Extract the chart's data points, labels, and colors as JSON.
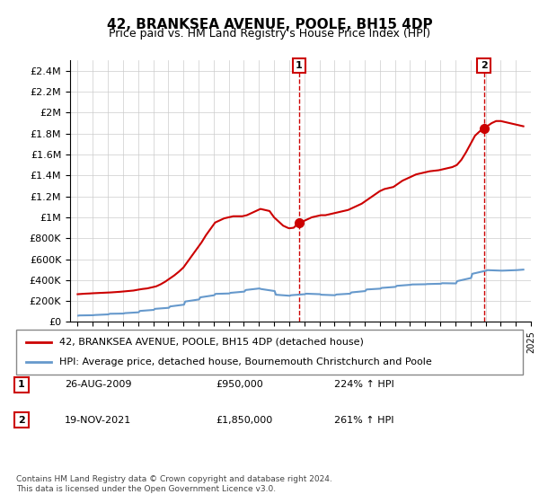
{
  "title": "42, BRANKSEA AVENUE, POOLE, BH15 4DP",
  "subtitle": "Price paid vs. HM Land Registry's House Price Index (HPI)",
  "hpi_color": "#6699cc",
  "price_color": "#cc0000",
  "marker_color": "#cc0000",
  "vline_color": "#cc0000",
  "background_color": "#ffffff",
  "grid_color": "#cccccc",
  "ylim": [
    0,
    2500000
  ],
  "yticks": [
    0,
    200000,
    400000,
    600000,
    800000,
    1000000,
    1200000,
    1400000,
    1600000,
    1800000,
    2000000,
    2200000,
    2400000
  ],
  "ytick_labels": [
    "£0",
    "£200K",
    "£400K",
    "£600K",
    "£800K",
    "£1M",
    "£1.2M",
    "£1.4M",
    "£1.6M",
    "£1.8M",
    "£2M",
    "£2.2M",
    "£2.4M"
  ],
  "sale1_date": 2009.65,
  "sale1_price": 950000,
  "sale1_label": "1",
  "sale2_date": 2021.89,
  "sale2_price": 1850000,
  "sale2_label": "2",
  "legend_label_price": "42, BRANKSEA AVENUE, POOLE, BH15 4DP (detached house)",
  "legend_label_hpi": "HPI: Average price, detached house, Bournemouth Christchurch and Poole",
  "annotation1_date": "26-AUG-2009",
  "annotation1_price": "£950,000",
  "annotation1_pct": "224% ↑ HPI",
  "annotation2_date": "19-NOV-2021",
  "annotation2_price": "£1,850,000",
  "annotation2_pct": "261% ↑ HPI",
  "footer": "Contains HM Land Registry data © Crown copyright and database right 2024.\nThis data is licensed under the Open Government Licence v3.0.",
  "hpi_data": {
    "years": [
      1995.04,
      1995.12,
      1996.04,
      1996.12,
      1997.04,
      1997.12,
      1998.04,
      1998.12,
      1999.04,
      1999.12,
      2000.04,
      2000.12,
      2001.04,
      2001.12,
      2002.04,
      2002.12,
      2003.04,
      2003.12,
      2004.04,
      2004.12,
      2005.04,
      2005.12,
      2006.04,
      2006.12,
      2007.04,
      2007.12,
      2008.04,
      2008.12,
      2009.04,
      2009.12,
      2010.04,
      2010.12,
      2011.04,
      2011.12,
      2012.04,
      2012.12,
      2013.04,
      2013.12,
      2014.04,
      2014.12,
      2015.04,
      2015.12,
      2016.04,
      2016.12,
      2017.04,
      2017.12,
      2018.04,
      2018.12,
      2019.04,
      2019.12,
      2020.04,
      2020.12,
      2021.04,
      2021.12,
      2022.04,
      2022.12,
      2023.04,
      2023.12,
      2024.04,
      2024.5
    ],
    "values": [
      60000,
      62000,
      64000,
      66000,
      72000,
      78000,
      80000,
      84000,
      92000,
      105000,
      115000,
      125000,
      135000,
      148000,
      165000,
      195000,
      215000,
      235000,
      255000,
      268000,
      272000,
      278000,
      290000,
      305000,
      320000,
      315000,
      295000,
      260000,
      250000,
      255000,
      265000,
      270000,
      265000,
      260000,
      255000,
      262000,
      270000,
      282000,
      295000,
      310000,
      318000,
      325000,
      335000,
      345000,
      355000,
      358000,
      360000,
      362000,
      365000,
      370000,
      368000,
      390000,
      420000,
      460000,
      490000,
      495000,
      490000,
      490000,
      495000,
      500000
    ]
  },
  "price_data": {
    "years": [
      1995.0,
      1995.3,
      1995.5,
      1995.8,
      1996.0,
      1996.3,
      1996.6,
      1996.9,
      1997.2,
      1997.5,
      1997.8,
      1998.1,
      1998.4,
      1998.7,
      1999.0,
      1999.3,
      1999.6,
      1999.9,
      2000.2,
      2000.5,
      2000.8,
      2001.1,
      2001.4,
      2001.7,
      2002.0,
      2002.3,
      2002.6,
      2002.9,
      2003.2,
      2003.5,
      2003.8,
      2004.1,
      2004.4,
      2004.7,
      2005.0,
      2005.3,
      2005.6,
      2005.9,
      2006.2,
      2006.5,
      2006.8,
      2007.1,
      2007.4,
      2007.7,
      2008.0,
      2008.3,
      2008.6,
      2008.9,
      2009.0,
      2009.3,
      2009.65,
      2009.9,
      2010.2,
      2010.5,
      2010.8,
      2011.1,
      2011.4,
      2011.7,
      2012.0,
      2012.3,
      2012.6,
      2012.9,
      2013.2,
      2013.5,
      2013.8,
      2014.1,
      2014.4,
      2014.7,
      2015.0,
      2015.3,
      2015.6,
      2015.9,
      2016.2,
      2016.5,
      2016.8,
      2017.1,
      2017.4,
      2017.7,
      2018.0,
      2018.3,
      2018.6,
      2018.9,
      2019.2,
      2019.5,
      2019.8,
      2020.1,
      2020.4,
      2020.7,
      2021.0,
      2021.3,
      2021.6,
      2021.89,
      2022.1,
      2022.4,
      2022.7,
      2023.0,
      2023.3,
      2023.6,
      2023.9,
      2024.2,
      2024.5
    ],
    "values": [
      265000,
      268000,
      270000,
      272000,
      274000,
      276000,
      278000,
      280000,
      282000,
      285000,
      288000,
      292000,
      296000,
      300000,
      308000,
      315000,
      320000,
      330000,
      340000,
      360000,
      385000,
      415000,
      445000,
      480000,
      520000,
      580000,
      640000,
      700000,
      760000,
      830000,
      890000,
      950000,
      970000,
      990000,
      1000000,
      1010000,
      1010000,
      1010000,
      1020000,
      1040000,
      1060000,
      1080000,
      1070000,
      1060000,
      1000000,
      960000,
      920000,
      900000,
      895000,
      900000,
      950000,
      960000,
      980000,
      1000000,
      1010000,
      1020000,
      1020000,
      1030000,
      1040000,
      1050000,
      1060000,
      1070000,
      1090000,
      1110000,
      1130000,
      1160000,
      1190000,
      1220000,
      1250000,
      1270000,
      1280000,
      1290000,
      1320000,
      1350000,
      1370000,
      1390000,
      1410000,
      1420000,
      1430000,
      1440000,
      1445000,
      1450000,
      1460000,
      1470000,
      1480000,
      1500000,
      1550000,
      1620000,
      1700000,
      1780000,
      1820000,
      1850000,
      1870000,
      1900000,
      1920000,
      1920000,
      1910000,
      1900000,
      1890000,
      1880000,
      1870000
    ]
  }
}
